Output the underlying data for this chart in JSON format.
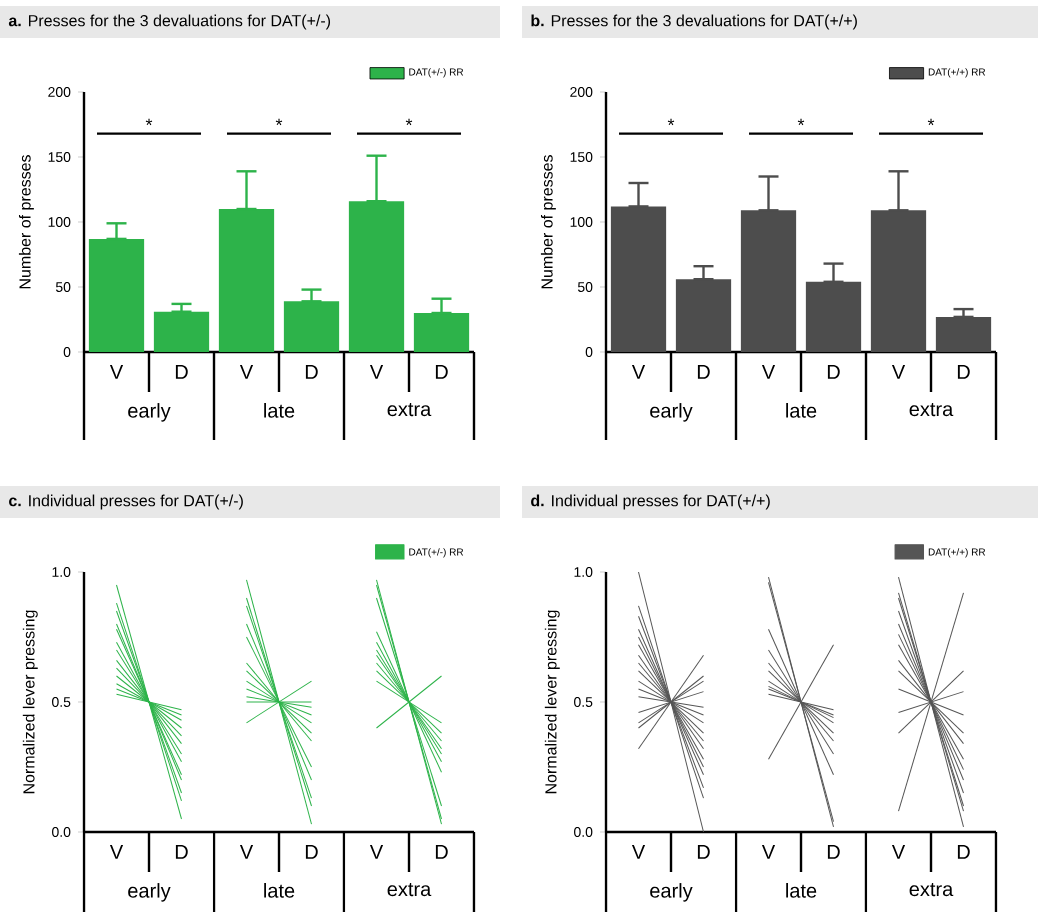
{
  "chart_data": [
    {
      "type": "bar",
      "title": "**a.** Presses for the 3 devaluations for DAT(+/-)",
      "ylabel": "Number of presses",
      "categories": [
        "V",
        "D",
        "V",
        "D",
        "V",
        "D"
      ],
      "series": [
        {
          "name": "DAT(+/-) RR",
          "color": "#2db34a",
          "values": [
            87,
            31,
            110,
            39,
            116,
            30
          ],
          "errors": [
            [
              87,
              99
            ],
            [
              31,
              37
            ],
            [
              110,
              139
            ],
            [
              39,
              48
            ],
            [
              116,
              151
            ],
            [
              30,
              41
            ]
          ]
        }
      ],
      "ylim": [
        0,
        200
      ],
      "yticks": [
        0,
        50,
        100,
        150,
        200
      ],
      "legend": "top right",
      "annotations": [
        "early",
        "late",
        "extra",
        "*",
        "*",
        "*"
      ]
    },
    {
      "type": "bar",
      "title": "**b.** Presses for the 3 devaluations for DAT(+/+)",
      "ylabel": "Number of presses",
      "categories": [
        "V",
        "D",
        "V",
        "D",
        "V",
        "D"
      ],
      "series": [
        {
          "name": "DAT(+/+) RR",
          "color": "#4d4d4d",
          "values": [
            112,
            56,
            109,
            54,
            109,
            27
          ],
          "errors": [
            [
              112,
              130
            ],
            [
              56,
              66
            ],
            [
              109,
              135
            ],
            [
              54,
              68
            ],
            [
              109,
              139
            ],
            [
              27,
              33
            ]
          ]
        }
      ],
      "ylim": [
        0,
        200
      ],
      "yticks": [
        0,
        50,
        100,
        150,
        200
      ],
      "legend": "top right",
      "annotations": [
        "early",
        "late",
        "extra",
        "*",
        "*",
        "*"
      ]
    },
    {
      "type": "line",
      "title": "**c.** Individual presses for DAT(+/-)",
      "ylabel": "Normalized lever pressing",
      "categories": [
        "V",
        "D",
        "V",
        "D",
        "V",
        "D"
      ],
      "ylim": [
        0,
        1
      ],
      "yticks": [
        {
          "value": 0,
          "label": "0.0"
        },
        {
          "value": 0.5,
          "label": "0.5"
        },
        {
          "value": 1,
          "label": "1.0"
        }
      ],
      "legend": "top right",
      "annotations": [
        "early",
        "late",
        "extra"
      ],
      "series": [
        {
          "name": "DAT(+/-) RR",
          "color": "#2db34a",
          "values": [
            0.95,
            0.05,
            null,
            null,
            null,
            null
          ]
        },
        {
          "color": "#2db34a",
          "values": [
            0.88,
            0.12,
            null,
            null,
            null,
            null
          ]
        },
        {
          "color": "#2db34a",
          "values": [
            0.85,
            0.15,
            null,
            null,
            null,
            null
          ]
        },
        {
          "color": "#2db34a",
          "values": [
            0.8,
            0.2,
            null,
            null,
            null,
            null
          ]
        },
        {
          "color": "#2db34a",
          "values": [
            0.78,
            0.22,
            null,
            null,
            null,
            null
          ]
        },
        {
          "color": "#2db34a",
          "values": [
            0.73,
            0.27,
            null,
            null,
            null,
            null
          ]
        },
        {
          "color": "#2db34a",
          "values": [
            0.7,
            0.3,
            null,
            null,
            null,
            null
          ]
        },
        {
          "color": "#2db34a",
          "values": [
            0.66,
            0.34,
            null,
            null,
            null,
            null
          ]
        },
        {
          "color": "#2db34a",
          "values": [
            0.63,
            0.37,
            null,
            null,
            null,
            null
          ]
        },
        {
          "color": "#2db34a",
          "values": [
            0.6,
            0.4,
            null,
            null,
            null,
            null
          ]
        },
        {
          "color": "#2db34a",
          "values": [
            0.57,
            0.43,
            null,
            null,
            null,
            null
          ]
        },
        {
          "color": "#2db34a",
          "values": [
            0.55,
            0.45,
            null,
            null,
            null,
            null
          ]
        },
        {
          "color": "#2db34a",
          "values": [
            0.53,
            0.47,
            null,
            null,
            null,
            null
          ]
        },
        {
          "color": "#2db34a",
          "values": [
            null,
            null,
            0.97,
            0.03,
            null,
            null
          ]
        },
        {
          "color": "#2db34a",
          "values": [
            null,
            null,
            0.9,
            0.1,
            null,
            null
          ]
        },
        {
          "color": "#2db34a",
          "values": [
            null,
            null,
            0.87,
            0.13,
            null,
            null
          ]
        },
        {
          "color": "#2db34a",
          "values": [
            null,
            null,
            0.8,
            0.2,
            null,
            null
          ]
        },
        {
          "color": "#2db34a",
          "values": [
            null,
            null,
            0.75,
            0.25,
            null,
            null
          ]
        },
        {
          "color": "#2db34a",
          "values": [
            null,
            null,
            0.65,
            0.35,
            null,
            null
          ]
        },
        {
          "color": "#2db34a",
          "values": [
            null,
            null,
            0.62,
            0.38,
            null,
            null
          ]
        },
        {
          "color": "#2db34a",
          "values": [
            null,
            null,
            0.58,
            0.42,
            null,
            null
          ]
        },
        {
          "color": "#2db34a",
          "values": [
            null,
            null,
            0.55,
            0.45,
            null,
            null
          ]
        },
        {
          "color": "#2db34a",
          "values": [
            null,
            null,
            0.52,
            0.48,
            null,
            null
          ]
        },
        {
          "color": "#2db34a",
          "values": [
            null,
            null,
            0.5,
            0.5,
            null,
            null
          ]
        },
        {
          "color": "#2db34a",
          "values": [
            null,
            null,
            0.42,
            0.58,
            null,
            null
          ]
        },
        {
          "color": "#2db34a",
          "values": [
            null,
            null,
            null,
            null,
            0.97,
            0.03
          ]
        },
        {
          "color": "#2db34a",
          "values": [
            null,
            null,
            null,
            null,
            0.95,
            0.05
          ]
        },
        {
          "color": "#2db34a",
          "values": [
            null,
            null,
            null,
            null,
            0.9,
            0.1
          ]
        },
        {
          "color": "#2db34a",
          "values": [
            null,
            null,
            null,
            null,
            0.77,
            0.23
          ]
        },
        {
          "color": "#2db34a",
          "values": [
            null,
            null,
            null,
            null,
            0.73,
            0.27
          ]
        },
        {
          "color": "#2db34a",
          "values": [
            null,
            null,
            null,
            null,
            0.7,
            0.3
          ]
        },
        {
          "color": "#2db34a",
          "values": [
            null,
            null,
            null,
            null,
            0.68,
            0.32
          ]
        },
        {
          "color": "#2db34a",
          "values": [
            null,
            null,
            null,
            null,
            0.65,
            0.35
          ]
        },
        {
          "color": "#2db34a",
          "values": [
            null,
            null,
            null,
            null,
            0.62,
            0.38
          ]
        },
        {
          "color": "#2db34a",
          "values": [
            null,
            null,
            null,
            null,
            0.58,
            0.42
          ]
        },
        {
          "color": "#2db34a",
          "values": [
            null,
            null,
            null,
            null,
            0.4,
            0.6
          ]
        }
      ]
    },
    {
      "type": "line",
      "title": "**d.** Individual presses for DAT(+/+)",
      "ylabel": "Normalized lever pressing",
      "categories": [
        "V",
        "D",
        "V",
        "D",
        "V",
        "D"
      ],
      "ylim": [
        0,
        1
      ],
      "yticks": [
        {
          "value": 0,
          "label": "0.0"
        },
        {
          "value": 0.5,
          "label": "0.5"
        },
        {
          "value": 1,
          "label": "1.0"
        }
      ],
      "legend": "top right",
      "annotations": [
        "early",
        "late",
        "extra"
      ],
      "series": [
        {
          "name": "DAT(+/+) RR",
          "color": "#555555",
          "values": [
            1.0,
            0.0,
            null,
            null,
            null,
            null
          ]
        },
        {
          "color": "#555555",
          "values": [
            0.87,
            0.13,
            null,
            null,
            null,
            null
          ]
        },
        {
          "color": "#555555",
          "values": [
            0.83,
            0.17,
            null,
            null,
            null,
            null
          ]
        },
        {
          "color": "#555555",
          "values": [
            0.78,
            0.22,
            null,
            null,
            null,
            null
          ]
        },
        {
          "color": "#555555",
          "values": [
            0.75,
            0.25,
            null,
            null,
            null,
            null
          ]
        },
        {
          "color": "#555555",
          "values": [
            0.72,
            0.28,
            null,
            null,
            null,
            null
          ]
        },
        {
          "color": "#555555",
          "values": [
            0.68,
            0.32,
            null,
            null,
            null,
            null
          ]
        },
        {
          "color": "#555555",
          "values": [
            0.65,
            0.35,
            null,
            null,
            null,
            null
          ]
        },
        {
          "color": "#555555",
          "values": [
            0.62,
            0.38,
            null,
            null,
            null,
            null
          ]
        },
        {
          "color": "#555555",
          "values": [
            0.58,
            0.42,
            null,
            null,
            null,
            null
          ]
        },
        {
          "color": "#555555",
          "values": [
            0.55,
            0.45,
            null,
            null,
            null,
            null
          ]
        },
        {
          "color": "#555555",
          "values": [
            0.52,
            0.48,
            null,
            null,
            null,
            null
          ]
        },
        {
          "color": "#555555",
          "values": [
            0.46,
            0.54,
            null,
            null,
            null,
            null
          ]
        },
        {
          "color": "#555555",
          "values": [
            0.42,
            0.58,
            null,
            null,
            null,
            null
          ]
        },
        {
          "color": "#555555",
          "values": [
            0.4,
            0.6,
            null,
            null,
            null,
            null
          ]
        },
        {
          "color": "#555555",
          "values": [
            0.32,
            0.68,
            null,
            null,
            null,
            null
          ]
        },
        {
          "color": "#555555",
          "values": [
            null,
            null,
            0.98,
            0.02,
            null,
            null
          ]
        },
        {
          "color": "#555555",
          "values": [
            null,
            null,
            0.96,
            0.04,
            null,
            null
          ]
        },
        {
          "color": "#555555",
          "values": [
            null,
            null,
            0.78,
            0.22,
            null,
            null
          ]
        },
        {
          "color": "#555555",
          "values": [
            null,
            null,
            0.7,
            0.3,
            null,
            null
          ]
        },
        {
          "color": "#555555",
          "values": [
            null,
            null,
            0.65,
            0.35,
            null,
            null
          ]
        },
        {
          "color": "#555555",
          "values": [
            null,
            null,
            0.62,
            0.38,
            null,
            null
          ]
        },
        {
          "color": "#555555",
          "values": [
            null,
            null,
            0.58,
            0.42,
            null,
            null
          ]
        },
        {
          "color": "#555555",
          "values": [
            null,
            null,
            0.56,
            0.44,
            null,
            null
          ]
        },
        {
          "color": "#555555",
          "values": [
            null,
            null,
            0.55,
            0.45,
            null,
            null
          ]
        },
        {
          "color": "#555555",
          "values": [
            null,
            null,
            0.53,
            0.47,
            null,
            null
          ]
        },
        {
          "color": "#555555",
          "values": [
            null,
            null,
            0.28,
            0.72,
            null,
            null
          ]
        },
        {
          "color": "#555555",
          "values": [
            null,
            null,
            null,
            null,
            0.98,
            0.02
          ]
        },
        {
          "color": "#555555",
          "values": [
            null,
            null,
            null,
            null,
            0.92,
            0.08
          ]
        },
        {
          "color": "#555555",
          "values": [
            null,
            null,
            null,
            null,
            0.9,
            0.1
          ]
        },
        {
          "color": "#555555",
          "values": [
            null,
            null,
            null,
            null,
            0.85,
            0.15
          ]
        },
        {
          "color": "#555555",
          "values": [
            null,
            null,
            null,
            null,
            0.8,
            0.2
          ]
        },
        {
          "color": "#555555",
          "values": [
            null,
            null,
            null,
            null,
            0.76,
            0.24
          ]
        },
        {
          "color": "#555555",
          "values": [
            null,
            null,
            null,
            null,
            0.72,
            0.28
          ]
        },
        {
          "color": "#555555",
          "values": [
            null,
            null,
            null,
            null,
            0.66,
            0.34
          ]
        },
        {
          "color": "#555555",
          "values": [
            null,
            null,
            null,
            null,
            0.62,
            0.38
          ]
        },
        {
          "color": "#555555",
          "values": [
            null,
            null,
            null,
            null,
            0.55,
            0.45
          ]
        },
        {
          "color": "#555555",
          "values": [
            null,
            null,
            null,
            null,
            0.46,
            0.54
          ]
        },
        {
          "color": "#555555",
          "values": [
            null,
            null,
            null,
            null,
            0.38,
            0.62
          ]
        },
        {
          "color": "#555555",
          "values": [
            null,
            null,
            null,
            null,
            0.08,
            0.92
          ]
        }
      ]
    }
  ]
}
